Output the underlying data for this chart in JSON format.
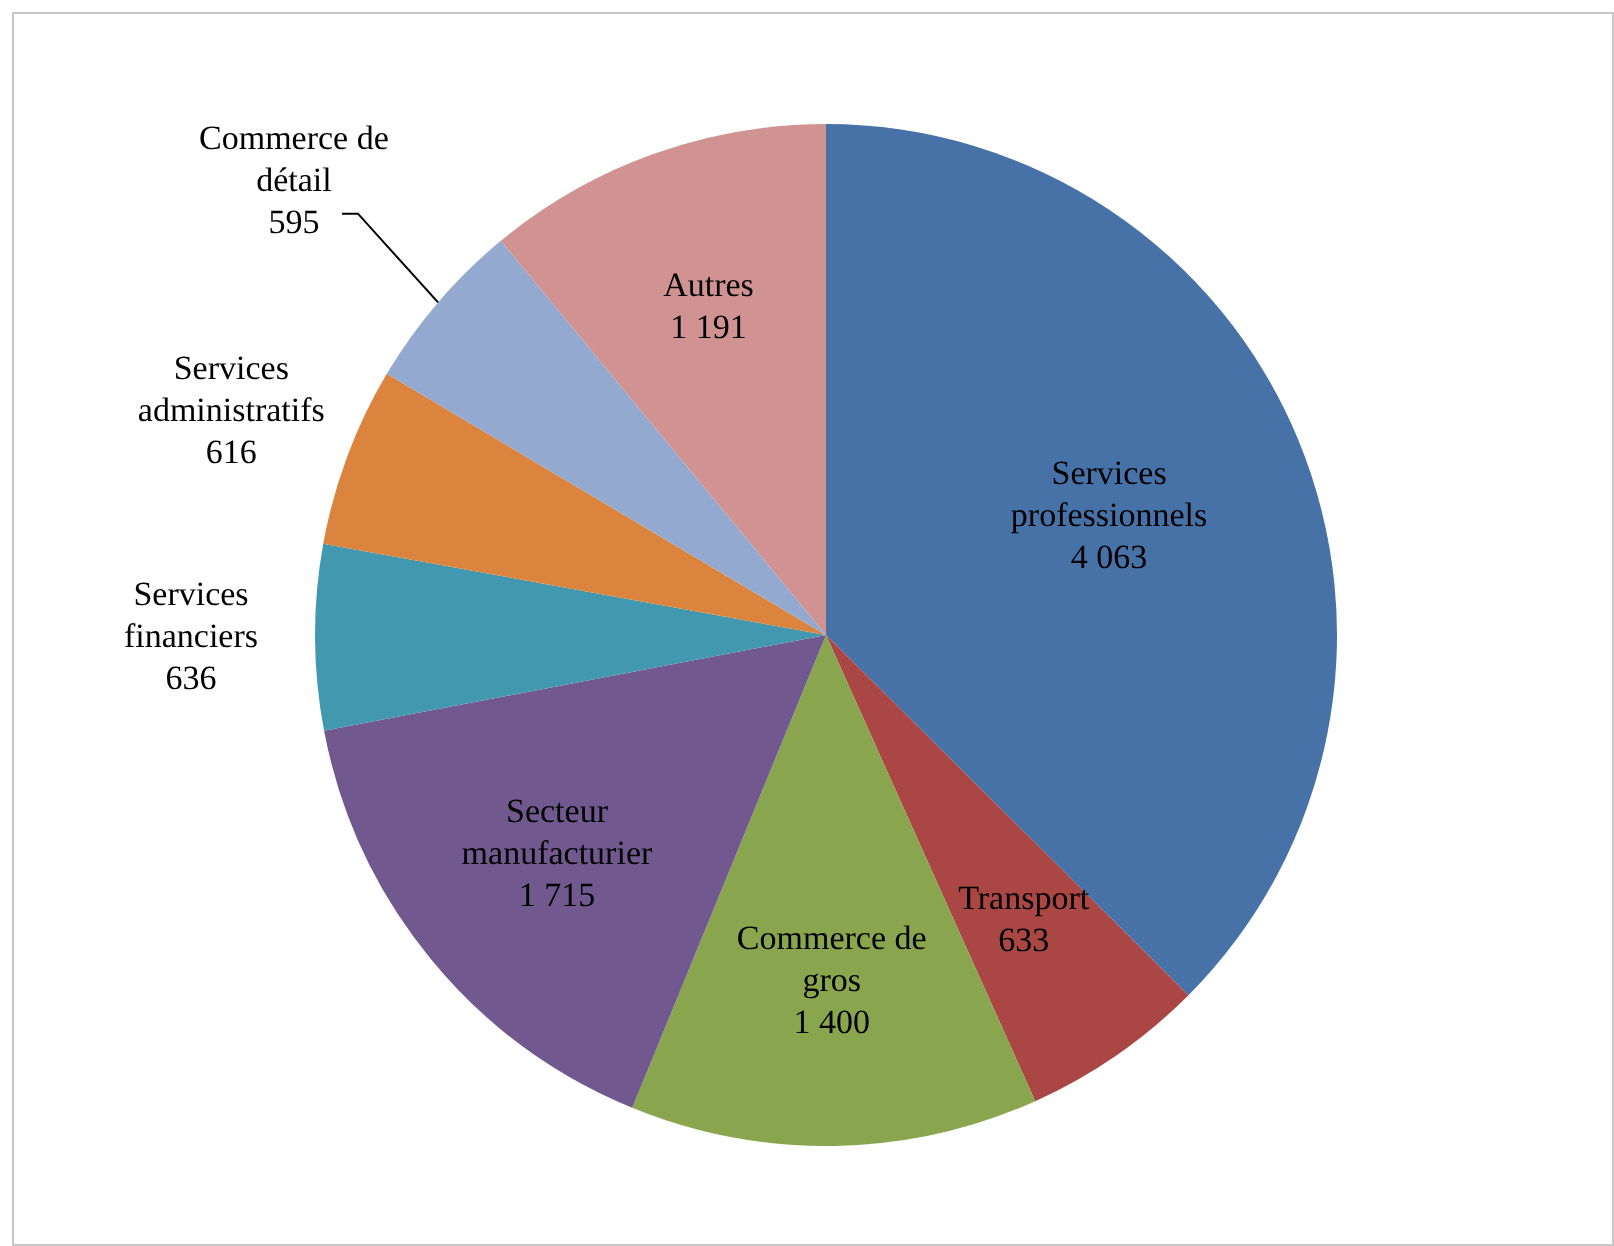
{
  "chart_data": {
    "type": "pie",
    "categories": [
      "Services professionnels",
      "Transport",
      "Commerce de gros",
      "Secteur manufacturier",
      "Services financiers",
      "Services administratifs",
      "Commerce de détail",
      "Autres"
    ],
    "values": [
      4063,
      633,
      1400,
      1715,
      636,
      616,
      595,
      1191
    ],
    "value_labels": [
      "4 063",
      "633",
      "1 400",
      "1 715",
      "636",
      "616",
      "595",
      "1 191"
    ],
    "colors": [
      "#4672a8",
      "#aa4643",
      "#89a54e",
      "#71588f",
      "#4198af",
      "#db843d",
      "#93a9cf",
      "#d19392"
    ],
    "legend": false
  }
}
